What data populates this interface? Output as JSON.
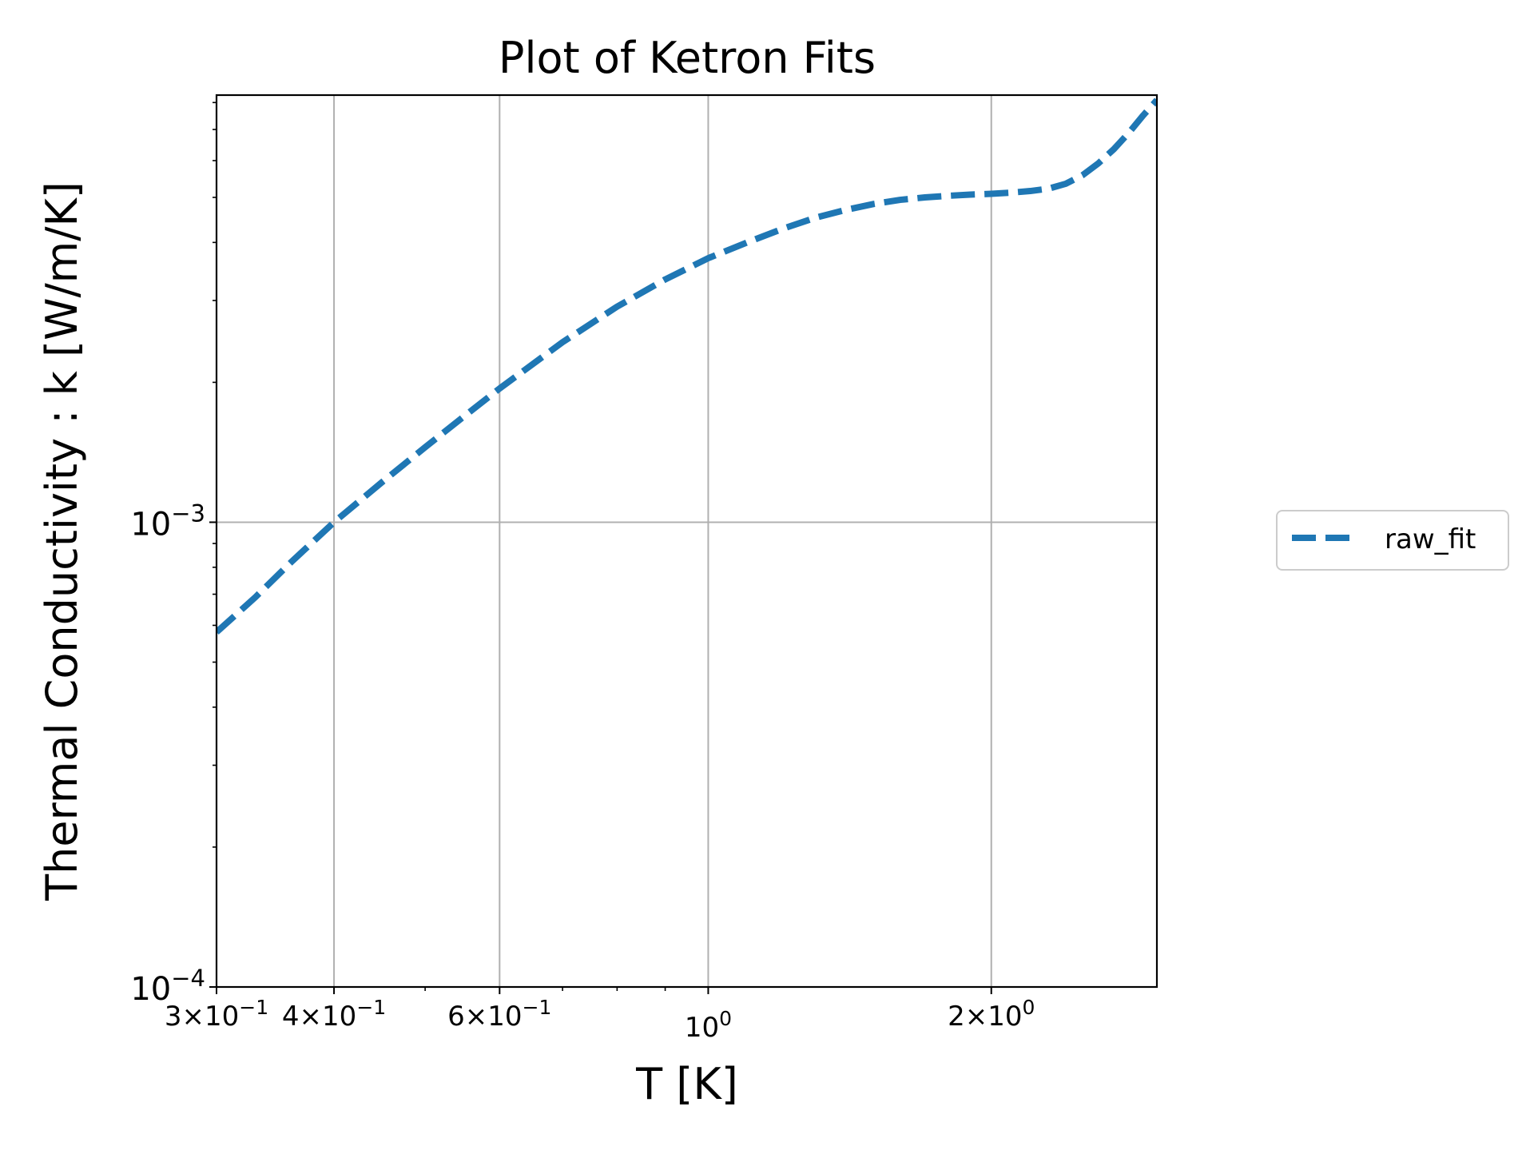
{
  "chart_data": {
    "type": "line",
    "title": "Plot of Ketron Fits",
    "xlabel": "T [K]",
    "ylabel": "Thermal Conductivity : k [W/m/K]",
    "xscale": "log",
    "yscale": "log",
    "xlim": [
      0.3,
      3.0
    ],
    "ylim": [
      0.0001,
      0.0083
    ],
    "grid": true,
    "legend_position": "right-outside",
    "x_major_ticks": [
      {
        "value": 0.3,
        "mantissa": "3",
        "exp": "−1"
      },
      {
        "value": 0.4,
        "mantissa": "4",
        "exp": "−1"
      },
      {
        "value": 0.6,
        "mantissa": "6",
        "exp": "−1"
      },
      {
        "value": 1.0,
        "mantissa": "",
        "exp": "0"
      },
      {
        "value": 2.0,
        "mantissa": "2",
        "exp": "0"
      }
    ],
    "x_minor_ticks": [
      0.5,
      0.7,
      0.8,
      0.9
    ],
    "y_major_ticks": [
      {
        "value": 0.0001,
        "exp": "−4"
      },
      {
        "value": 0.001,
        "exp": "−3"
      }
    ],
    "y_minor_ticks": [
      0.0002,
      0.0003,
      0.0004,
      0.0005,
      0.0006,
      0.0007,
      0.0008,
      0.0009,
      0.002,
      0.003,
      0.004,
      0.005,
      0.006,
      0.007,
      0.008
    ],
    "series": [
      {
        "name": "raw_fit",
        "color": "#1f77b4",
        "linestyle": "dashed",
        "x": [
          0.3,
          0.33,
          0.36,
          0.4,
          0.45,
          0.5,
          0.55,
          0.6,
          0.7,
          0.8,
          0.9,
          1.0,
          1.1,
          1.2,
          1.3,
          1.4,
          1.5,
          1.6,
          1.7,
          1.8,
          1.9,
          2.0,
          2.1,
          2.2,
          2.3,
          2.4,
          2.5,
          2.6,
          2.7,
          2.8,
          2.9,
          3.0
        ],
        "y": [
          0.00058,
          0.00069,
          0.00082,
          0.001,
          0.00122,
          0.00145,
          0.00169,
          0.00194,
          0.00244,
          0.00291,
          0.00333,
          0.0037,
          0.004,
          0.00428,
          0.00452,
          0.0047,
          0.00484,
          0.00494,
          0.005,
          0.00504,
          0.00507,
          0.00509,
          0.00512,
          0.00516,
          0.00522,
          0.00535,
          0.00558,
          0.00592,
          0.00635,
          0.00688,
          0.0075,
          0.0081
        ]
      }
    ]
  }
}
